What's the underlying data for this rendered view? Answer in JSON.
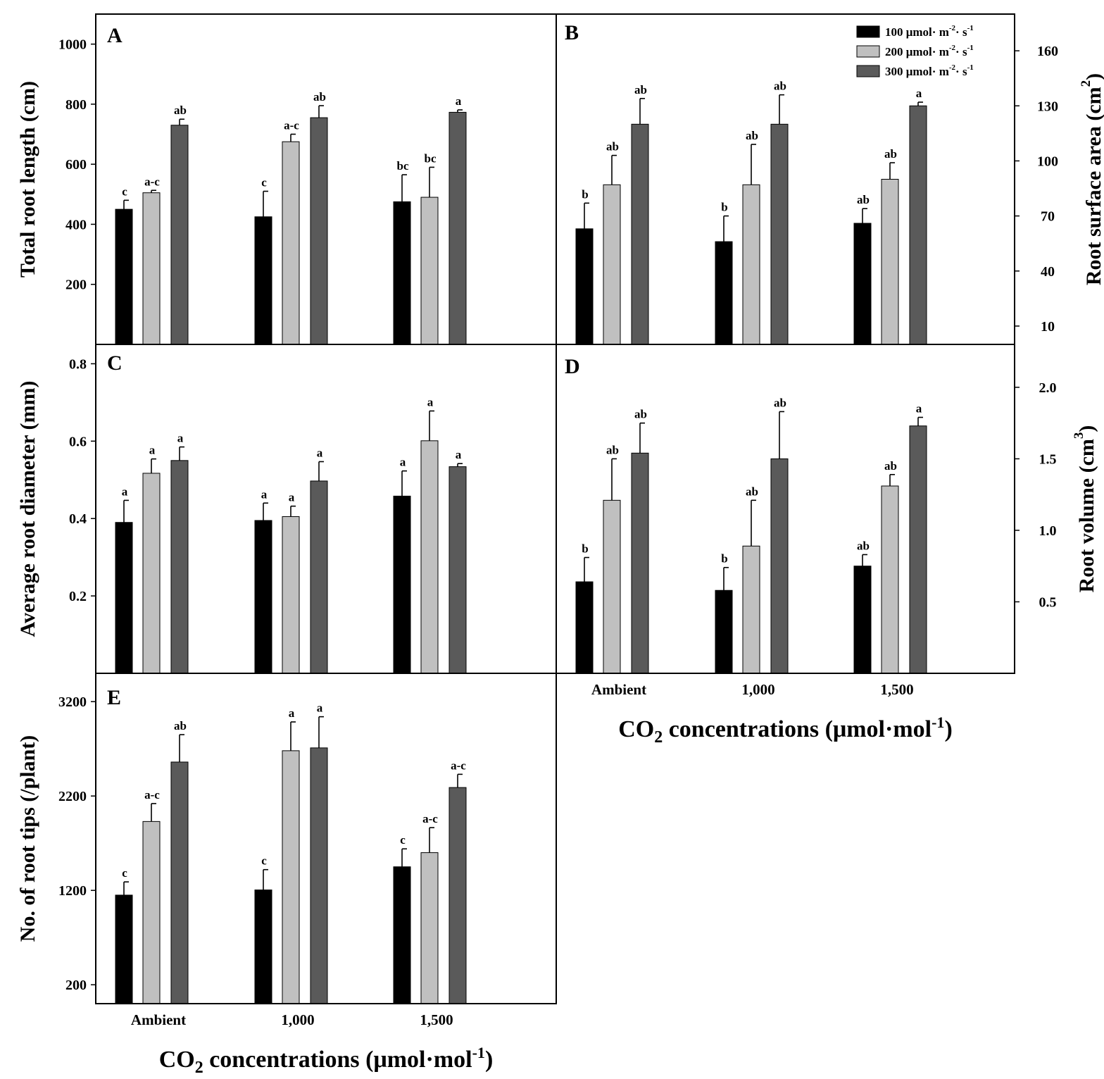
{
  "legend": {
    "placement": "top-right of panel B",
    "items": [
      {
        "label": "100 μmol· m",
        "exp1": "-2",
        "mid": "· s",
        "exp2": "-1",
        "color": "#000000"
      },
      {
        "label": "200 μmol· m",
        "exp1": "-2",
        "mid": "· s",
        "exp2": "-1",
        "color": "#c0c0c0"
      },
      {
        "label": "300 μmol· m",
        "exp1": "-2",
        "mid": "· s",
        "exp2": "-1",
        "color": "#5a5a5a"
      }
    ]
  },
  "xaxis": {
    "title_pre": "CO",
    "title_sub": "2",
    "title_mid": " concentrations (μmol·mol",
    "title_sup": "-1",
    "title_post": ")"
  },
  "chart_data": [
    {
      "panel": "A",
      "type": "bar",
      "ylabel": "Total root length (cm)",
      "ylabel_sup": "",
      "ylabel_post": "",
      "categories": [
        "Ambient",
        "1,000",
        "1,500"
      ],
      "ylim": [
        0,
        1100
      ],
      "yticks": [
        200,
        400,
        600,
        800,
        1000
      ],
      "tick_labels": [
        "200",
        "400",
        "600",
        "800",
        "1000"
      ],
      "series": [
        {
          "values": [
            450,
            425,
            475
          ],
          "errors": [
            30,
            85,
            90
          ],
          "letters": [
            "c",
            "c",
            "bc"
          ]
        },
        {
          "values": [
            505,
            675,
            490
          ],
          "errors": [
            8,
            25,
            100
          ],
          "letters": [
            "a-c",
            "a-c",
            "bc"
          ]
        },
        {
          "values": [
            730,
            755,
            773
          ],
          "errors": [
            20,
            40,
            8
          ],
          "letters": [
            "ab",
            "ab",
            "a"
          ]
        }
      ]
    },
    {
      "panel": "B",
      "type": "bar",
      "ylabel": "Root surface area (cm",
      "ylabel_sup": "2",
      "ylabel_post": ")",
      "categories": [
        "Ambient",
        "1,000",
        "1,500"
      ],
      "ylim": [
        0,
        180
      ],
      "yticks": [
        10,
        40,
        70,
        100,
        130,
        160
      ],
      "tick_labels": [
        "10",
        "40",
        "70",
        "100",
        "130",
        "160"
      ],
      "series": [
        {
          "values": [
            63,
            56,
            66
          ],
          "errors": [
            14,
            14,
            8
          ],
          "letters": [
            "b",
            "b",
            "ab"
          ]
        },
        {
          "values": [
            87,
            87,
            90
          ],
          "errors": [
            16,
            22,
            9
          ],
          "letters": [
            "ab",
            "ab",
            "ab"
          ]
        },
        {
          "values": [
            120,
            120,
            130
          ],
          "errors": [
            14,
            16,
            2
          ],
          "letters": [
            "ab",
            "ab",
            "a"
          ]
        }
      ]
    },
    {
      "panel": "C",
      "type": "bar",
      "ylabel": "Average root diameter (mm)",
      "ylabel_sup": "",
      "ylabel_post": "",
      "categories": [
        "Ambient",
        "1,000",
        "1,500"
      ],
      "ylim": [
        0,
        0.85
      ],
      "yticks": [
        0.2,
        0.4,
        0.6,
        0.8
      ],
      "tick_labels": [
        "0.2",
        "0.4",
        "0.6",
        "0.8"
      ],
      "series": [
        {
          "values": [
            0.39,
            0.395,
            0.458
          ],
          "errors": [
            0.057,
            0.045,
            0.065
          ],
          "letters": [
            "a",
            "a",
            "a"
          ]
        },
        {
          "values": [
            0.517,
            0.405,
            0.601
          ],
          "errors": [
            0.037,
            0.027,
            0.077
          ],
          "letters": [
            "a",
            "a",
            "a"
          ]
        },
        {
          "values": [
            0.55,
            0.497,
            0.534
          ],
          "errors": [
            0.035,
            0.05,
            0.008
          ],
          "letters": [
            "a",
            "a",
            "a"
          ]
        }
      ]
    },
    {
      "panel": "D",
      "type": "bar",
      "ylabel": "Root volume (cm",
      "ylabel_sup": "3",
      "ylabel_post": ")",
      "categories": [
        "Ambient",
        "1,000",
        "1,500"
      ],
      "ylim": [
        0,
        2.3
      ],
      "yticks": [
        0.5,
        1.0,
        1.5,
        2.0
      ],
      "tick_labels": [
        "0.5",
        "1.0",
        "1.5",
        "2.0"
      ],
      "series": [
        {
          "values": [
            0.64,
            0.58,
            0.75
          ],
          "errors": [
            0.17,
            0.16,
            0.08
          ],
          "letters": [
            "b",
            "b",
            "ab"
          ]
        },
        {
          "values": [
            1.21,
            0.89,
            1.31
          ],
          "errors": [
            0.29,
            0.32,
            0.08
          ],
          "letters": [
            "ab",
            "ab",
            "ab"
          ]
        },
        {
          "values": [
            1.54,
            1.5,
            1.73
          ],
          "errors": [
            0.21,
            0.33,
            0.06
          ],
          "letters": [
            "ab",
            "ab",
            "a"
          ]
        }
      ]
    },
    {
      "panel": "E",
      "type": "bar",
      "ylabel": "No. of root tips (/plant)",
      "ylabel_sup": "",
      "ylabel_post": "",
      "categories": [
        "Ambient",
        "1,000",
        "1,500"
      ],
      "ylim": [
        0,
        3500
      ],
      "yticks": [
        200,
        1200,
        2200,
        3200
      ],
      "tick_labels": [
        "200",
        "1200",
        "2200",
        "3200"
      ],
      "series": [
        {
          "values": [
            1150,
            1205,
            1450
          ],
          "errors": [
            140,
            215,
            190
          ],
          "letters": [
            "c",
            "c",
            "c"
          ]
        },
        {
          "values": [
            1930,
            2680,
            1600
          ],
          "errors": [
            190,
            305,
            265
          ],
          "letters": [
            "a-c",
            "a",
            "a-c"
          ]
        },
        {
          "values": [
            2560,
            2710,
            2290
          ],
          "errors": [
            290,
            330,
            140
          ],
          "letters": [
            "ab",
            "a",
            "a-c"
          ]
        }
      ]
    }
  ]
}
